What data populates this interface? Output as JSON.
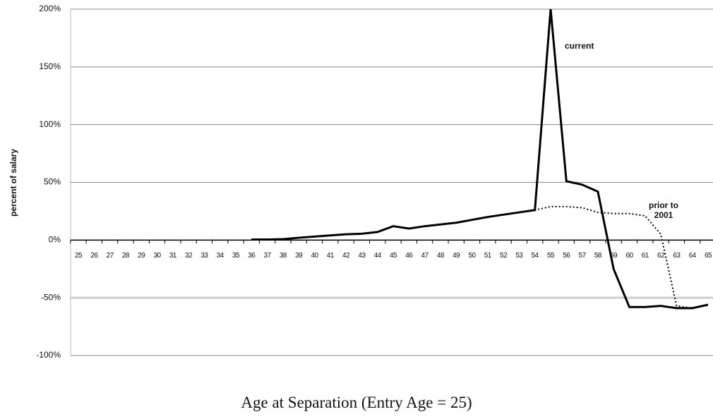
{
  "chart_data": {
    "type": "line",
    "x_label": "Age at Separation (Entry Age = 25)",
    "y_label": "percent of salary",
    "categories": [
      "25",
      "26",
      "27",
      "28",
      "29",
      "30",
      "31",
      "32",
      "33",
      "34",
      "35",
      "36",
      "37",
      "38",
      "39",
      "40",
      "41",
      "42",
      "43",
      "44",
      "45",
      "46",
      "47",
      "48",
      "49",
      "50",
      "51",
      "52",
      "53",
      "54",
      "55",
      "56",
      "57",
      "58",
      "59",
      "60",
      "61",
      "62",
      "63",
      "64",
      "65"
    ],
    "series": [
      {
        "name": "current",
        "color": "#000000",
        "dash": "solid",
        "values": [
          null,
          null,
          null,
          null,
          null,
          null,
          null,
          null,
          null,
          null,
          null,
          0.5,
          0.5,
          0.8,
          2,
          3,
          4,
          5,
          5.5,
          7,
          12,
          10,
          12,
          13.5,
          15,
          17.5,
          20,
          22,
          24,
          26,
          200,
          51,
          48,
          42,
          -25,
          -58,
          -58,
          -57,
          -59,
          -59,
          -56
        ]
      },
      {
        "name": "prior to 2001",
        "color": "#000000",
        "dash": "dotted",
        "values": [
          null,
          null,
          null,
          null,
          null,
          null,
          null,
          null,
          null,
          null,
          null,
          0.5,
          0.5,
          0.8,
          2,
          3,
          4,
          5,
          5.5,
          7,
          12,
          10,
          12,
          13.5,
          15,
          17.5,
          20,
          22,
          24,
          26,
          29,
          29,
          28,
          24,
          23,
          23,
          21,
          5,
          -57,
          -59,
          -56
        ]
      }
    ],
    "ylim": [
      -100,
      200
    ],
    "yticks": [
      {
        "value": -100,
        "label": "-100%"
      },
      {
        "value": -50,
        "label": "-50%"
      },
      {
        "value": 0,
        "label": "0%"
      },
      {
        "value": 50,
        "label": "50%"
      },
      {
        "value": 100,
        "label": "100%"
      },
      {
        "value": 150,
        "label": "150%"
      },
      {
        "value": 200,
        "label": "200%"
      }
    ],
    "grid": true
  }
}
